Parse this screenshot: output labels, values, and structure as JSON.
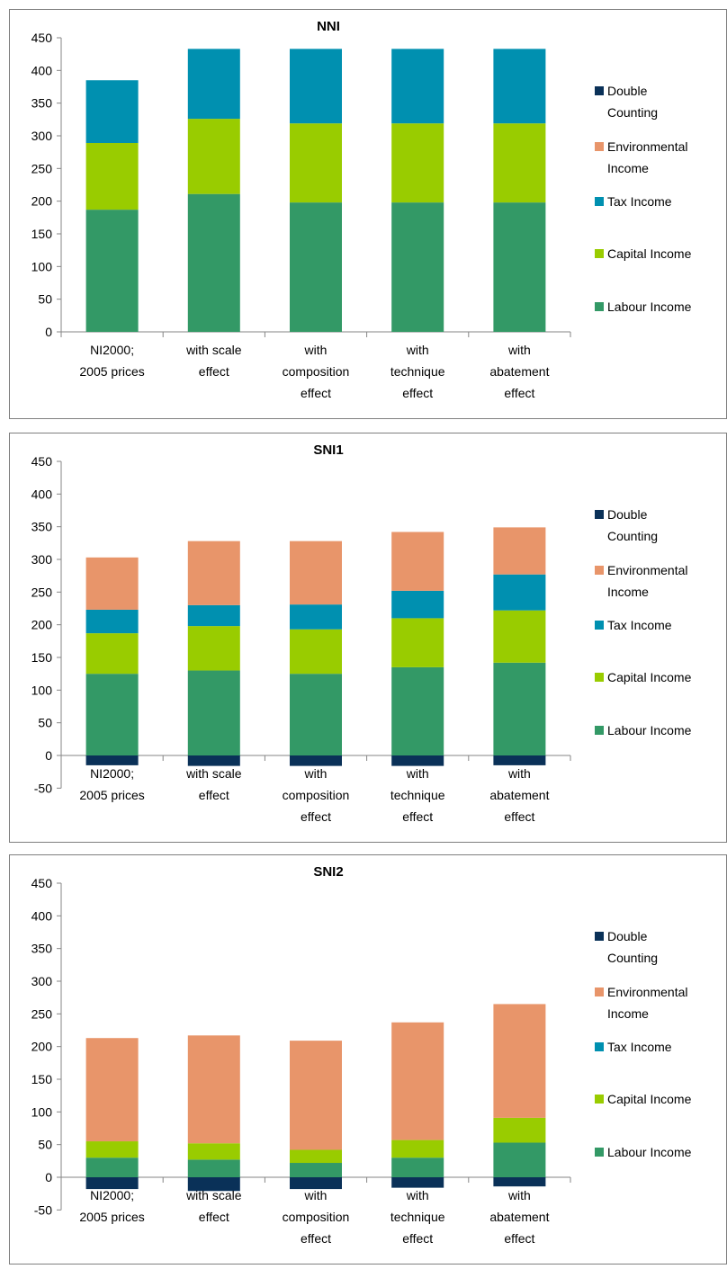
{
  "chart_data": [
    {
      "type": "bar",
      "stacked": true,
      "title": "NNI",
      "xlabel": "",
      "ylabel": "",
      "ylim": [
        0,
        450
      ],
      "y_ticks": [
        "0",
        "50",
        "100",
        "150",
        "200",
        "250",
        "300",
        "350",
        "400",
        "450"
      ],
      "categories": [
        [
          "NI2000;",
          "2005 prices"
        ],
        [
          "with scale",
          "effect"
        ],
        [
          "with",
          "composition",
          "effect"
        ],
        [
          "with",
          "technique",
          "effect"
        ],
        [
          "with",
          "abatement",
          "effect"
        ]
      ],
      "legend_position": "right",
      "series": [
        {
          "name": "Labour Income",
          "color": "#339966",
          "values": [
            187,
            211,
            198,
            198,
            198
          ]
        },
        {
          "name": "Capital Income",
          "color": "#99cc00",
          "values": [
            102,
            115,
            121,
            121,
            121
          ]
        },
        {
          "name": "Tax Income",
          "color": "#0090b0",
          "values": [
            96,
            107,
            114,
            114,
            114
          ]
        },
        {
          "name": "Environmental Income",
          "color": "#e8956a",
          "values": [
            0,
            0,
            0,
            0,
            0
          ]
        },
        {
          "name": "Double Counting",
          "color": "#0a3158",
          "values": [
            0,
            0,
            0,
            0,
            0
          ]
        }
      ],
      "legend": [
        {
          "lines": [
            "Double",
            "Counting"
          ],
          "color": "#0a3158"
        },
        {
          "lines": [
            "Environmental",
            "Income"
          ],
          "color": "#e8956a"
        },
        {
          "lines": [
            "Tax Income"
          ],
          "color": "#0090b0"
        },
        {
          "lines": [
            "Capital Income"
          ],
          "color": "#99cc00"
        },
        {
          "lines": [
            "Labour Income"
          ],
          "color": "#339966"
        }
      ]
    },
    {
      "type": "bar",
      "stacked": true,
      "title": "SNI1",
      "xlabel": "",
      "ylabel": "",
      "ylim": [
        -50,
        450
      ],
      "y_ticks": [
        "-50",
        "0",
        "50",
        "100",
        "150",
        "200",
        "250",
        "300",
        "350",
        "400",
        "450"
      ],
      "categories": [
        [
          "NI2000;",
          "2005 prices"
        ],
        [
          "with scale",
          "effect"
        ],
        [
          "with",
          "composition",
          "effect"
        ],
        [
          "with",
          "technique",
          "effect"
        ],
        [
          "with",
          "abatement",
          "effect"
        ]
      ],
      "legend_position": "right",
      "series": [
        {
          "name": "Labour Income",
          "color": "#339966",
          "values": [
            125,
            130,
            125,
            135,
            142
          ]
        },
        {
          "name": "Capital Income",
          "color": "#99cc00",
          "values": [
            62,
            68,
            68,
            75,
            80
          ]
        },
        {
          "name": "Tax Income",
          "color": "#0090b0",
          "values": [
            36,
            32,
            38,
            42,
            55
          ]
        },
        {
          "name": "Environmental Income",
          "color": "#e8956a",
          "values": [
            80,
            98,
            97,
            90,
            72
          ]
        },
        {
          "name": "Double Counting",
          "color": "#0a3158",
          "values": [
            -15,
            -16,
            -16,
            -16,
            -15
          ]
        }
      ],
      "legend": [
        {
          "lines": [
            "Double",
            "Counting"
          ],
          "color": "#0a3158"
        },
        {
          "lines": [
            "Environmental",
            "Income"
          ],
          "color": "#e8956a"
        },
        {
          "lines": [
            "Tax Income"
          ],
          "color": "#0090b0"
        },
        {
          "lines": [
            "Capital Income"
          ],
          "color": "#99cc00"
        },
        {
          "lines": [
            "Labour Income"
          ],
          "color": "#339966"
        }
      ]
    },
    {
      "type": "bar",
      "stacked": true,
      "title": "SNI2",
      "xlabel": "",
      "ylabel": "",
      "ylim": [
        -50,
        450
      ],
      "y_ticks": [
        "-50",
        "0",
        "50",
        "100",
        "150",
        "200",
        "250",
        "300",
        "350",
        "400",
        "450"
      ],
      "categories": [
        [
          "NI2000;",
          "2005 prices"
        ],
        [
          "with scale",
          "effect"
        ],
        [
          "with",
          "composition",
          "effect"
        ],
        [
          "with",
          "technique",
          "effect"
        ],
        [
          "with",
          "abatement",
          "effect"
        ]
      ],
      "legend_position": "right",
      "series": [
        {
          "name": "Labour Income",
          "color": "#339966",
          "values": [
            30,
            27,
            22,
            30,
            53
          ]
        },
        {
          "name": "Capital Income",
          "color": "#99cc00",
          "values": [
            25,
            25,
            20,
            27,
            38
          ]
        },
        {
          "name": "Tax Income",
          "color": "#0090b0",
          "values": [
            0,
            0,
            0,
            0,
            0
          ]
        },
        {
          "name": "Environmental Income",
          "color": "#e8956a",
          "values": [
            158,
            165,
            167,
            180,
            174
          ]
        },
        {
          "name": "Double Counting",
          "color": "#0a3158",
          "values": [
            -18,
            -21,
            -18,
            -16,
            -14
          ]
        }
      ],
      "legend": [
        {
          "lines": [
            "Double",
            "Counting"
          ],
          "color": "#0a3158"
        },
        {
          "lines": [
            "Environmental",
            "Income"
          ],
          "color": "#e8956a"
        },
        {
          "lines": [
            "Tax Income"
          ],
          "color": "#0090b0"
        },
        {
          "lines": [
            "Capital Income"
          ],
          "color": "#99cc00"
        },
        {
          "lines": [
            "Labour Income"
          ],
          "color": "#339966"
        }
      ]
    }
  ]
}
